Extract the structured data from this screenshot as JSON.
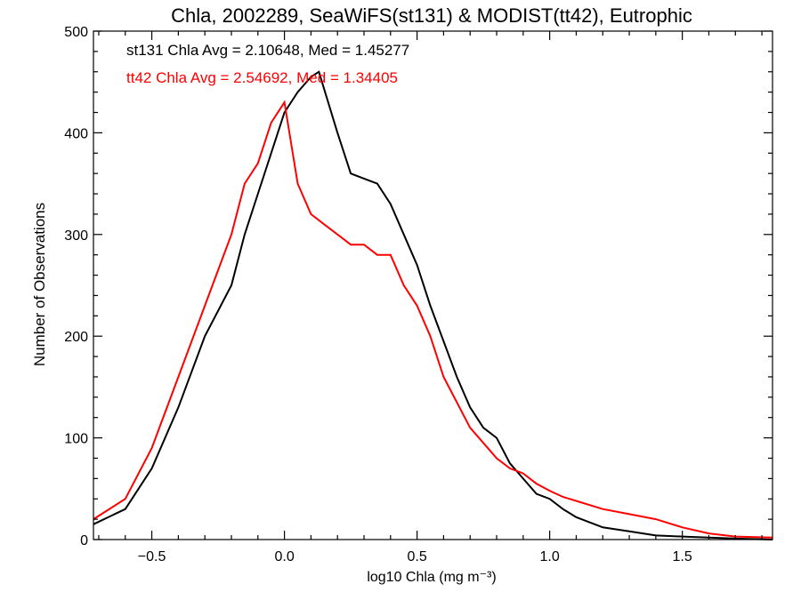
{
  "chart_data": {
    "type": "line",
    "title": "Chla, 2002289, SeaWiFS(st131) & MODIST(tt42), Eutrophic",
    "xlabel": "log10 Chla (mg m⁻³)",
    "ylabel": "Number of Observations",
    "xlim": [
      -0.72,
      1.84
    ],
    "ylim": [
      0,
      500
    ],
    "xticks": [
      -0.5,
      0.0,
      0.5,
      1.0,
      1.5
    ],
    "xtick_labels": [
      "−0.5",
      "0.0",
      "0.5",
      "1.0",
      "1.5"
    ],
    "yticks": [
      0,
      100,
      200,
      300,
      400,
      500
    ],
    "ytick_labels": [
      "0",
      "100",
      "200",
      "300",
      "400",
      "500"
    ],
    "annotations": [
      {
        "text": "st131 Chla Avg = 2.10648, Med = 1.45277",
        "color": "#000000"
      },
      {
        "text": "tt42 Chla Avg = 2.54692, Med = 1.34405",
        "color": "#ff0000"
      }
    ],
    "series": [
      {
        "color": "#000000",
        "x": [
          -0.72,
          -0.6,
          -0.5,
          -0.4,
          -0.3,
          -0.2,
          -0.15,
          -0.1,
          -0.05,
          0.0,
          0.05,
          0.1,
          0.13,
          0.2,
          0.25,
          0.3,
          0.35,
          0.4,
          0.45,
          0.5,
          0.55,
          0.6,
          0.65,
          0.7,
          0.75,
          0.8,
          0.85,
          0.9,
          0.95,
          1.0,
          1.05,
          1.1,
          1.2,
          1.3,
          1.4,
          1.5,
          1.6,
          1.7,
          1.84
        ],
        "values": [
          15,
          30,
          70,
          130,
          200,
          250,
          300,
          340,
          380,
          420,
          440,
          455,
          460,
          400,
          360,
          355,
          350,
          330,
          300,
          270,
          230,
          195,
          160,
          130,
          110,
          100,
          75,
          60,
          45,
          40,
          30,
          22,
          12,
          8,
          4,
          3,
          2,
          1,
          0
        ]
      },
      {
        "color": "#ff0000",
        "x": [
          -0.72,
          -0.6,
          -0.5,
          -0.4,
          -0.3,
          -0.2,
          -0.15,
          -0.1,
          -0.05,
          0.0,
          0.05,
          0.1,
          0.15,
          0.2,
          0.25,
          0.3,
          0.35,
          0.4,
          0.45,
          0.5,
          0.55,
          0.6,
          0.65,
          0.7,
          0.75,
          0.8,
          0.85,
          0.9,
          0.95,
          1.0,
          1.05,
          1.1,
          1.2,
          1.3,
          1.4,
          1.5,
          1.6,
          1.7,
          1.84
        ],
        "values": [
          20,
          40,
          90,
          160,
          230,
          300,
          350,
          370,
          410,
          430,
          350,
          320,
          310,
          300,
          290,
          290,
          280,
          280,
          250,
          230,
          200,
          160,
          135,
          110,
          95,
          80,
          70,
          65,
          55,
          48,
          42,
          38,
          30,
          25,
          20,
          12,
          6,
          3,
          2
        ]
      }
    ]
  }
}
